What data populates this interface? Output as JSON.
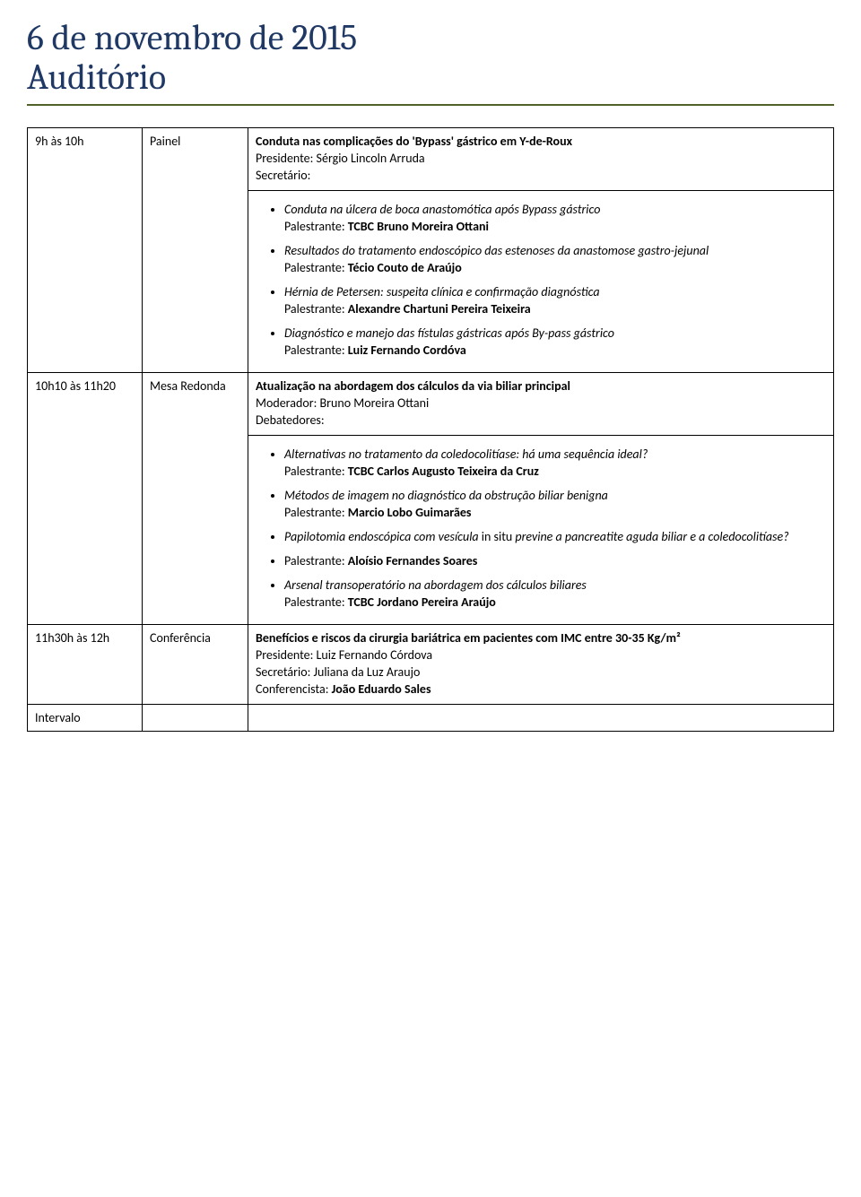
{
  "header": {
    "line1": "6 de novembro de 2015",
    "line2": "Auditório"
  },
  "colors": {
    "header_text": "#1f3864",
    "header_border": "#4f6228",
    "table_border": "#000000",
    "background": "#ffffff"
  },
  "typography": {
    "header_fontsize": 40,
    "body_fontsize": 14,
    "header_font": "Cambria",
    "body_font": "Calibri"
  },
  "rows": [
    {
      "time": "9h às 10h",
      "type": "Painel",
      "title": "Conduta nas complicações do 'Bypass' gástrico em Y-de-Roux",
      "presidente": "Presidente: Sérgio Lincoln Arruda",
      "secretario": "Secretário:",
      "bullets": [
        {
          "topic": "Conduta na úlcera de boca anastomótica após Bypass gástrico",
          "speaker_label": "Palestrante: ",
          "speaker": "TCBC Bruno Moreira Ottani"
        },
        {
          "topic": "Resultados do tratamento endoscópico das estenoses da anastomose gastro-jejunal",
          "speaker_label": "Palestrante: ",
          "speaker": "Técio Couto de Araújo"
        },
        {
          "topic": "Hérnia de Petersen: suspeita clínica e confirmação diagnóstica",
          "speaker_label": "Palestrante: ",
          "speaker": "Alexandre Chartuni Pereira Teixeira"
        },
        {
          "topic": "Diagnóstico e manejo das fístulas gástricas após By-pass gástrico",
          "speaker_label": "Palestrante: ",
          "speaker": "Luiz Fernando Cordóva"
        }
      ]
    },
    {
      "time": "10h10 às 11h20",
      "type": "Mesa Redonda",
      "title": "Atualização na abordagem dos cálculos da via biliar principal",
      "moderador": "Moderador: Bruno Moreira Ottani",
      "debatedores": "Debatedores:",
      "bullets": [
        {
          "topic": "Alternativas no tratamento da coledocolitíase: há uma sequência ideal?",
          "speaker_label": "Palestrante: ",
          "speaker": "TCBC Carlos Augusto Teixeira da Cruz"
        },
        {
          "topic": "Métodos de imagem no diagnóstico da obstrução biliar benigna",
          "speaker_label": "Palestrante: ",
          "speaker": "Marcio Lobo Guimarães"
        },
        {
          "topic_pre": "Papilotomia endoscópica com vesícula ",
          "topic_mid": "in situ",
          "topic_post": " previne a pancreatite aguda biliar e a coledocolitíase?"
        },
        {
          "speaker_label": "Palestrante: ",
          "speaker": "Aloísio Fernandes Soares",
          "speaker_only": true
        },
        {
          "topic": "Arsenal transoperatório na abordagem dos cálculos biliares",
          "speaker_label": "Palestrante: ",
          "speaker": "TCBC Jordano Pereira Araújo"
        }
      ]
    },
    {
      "time": "11h30h às 12h",
      "type": "Conferência",
      "title": "Benefícios e riscos da cirurgia bariátrica em pacientes com IMC entre 30-35 Kg/m²",
      "lines": [
        "Presidente: Luiz Fernando Córdova",
        "Secretário: Juliana da Luz Araujo"
      ],
      "conferencista_label": "Conferencista: ",
      "conferencista": "João Eduardo Sales"
    }
  ],
  "bottom": {
    "label": "Intervalo"
  }
}
